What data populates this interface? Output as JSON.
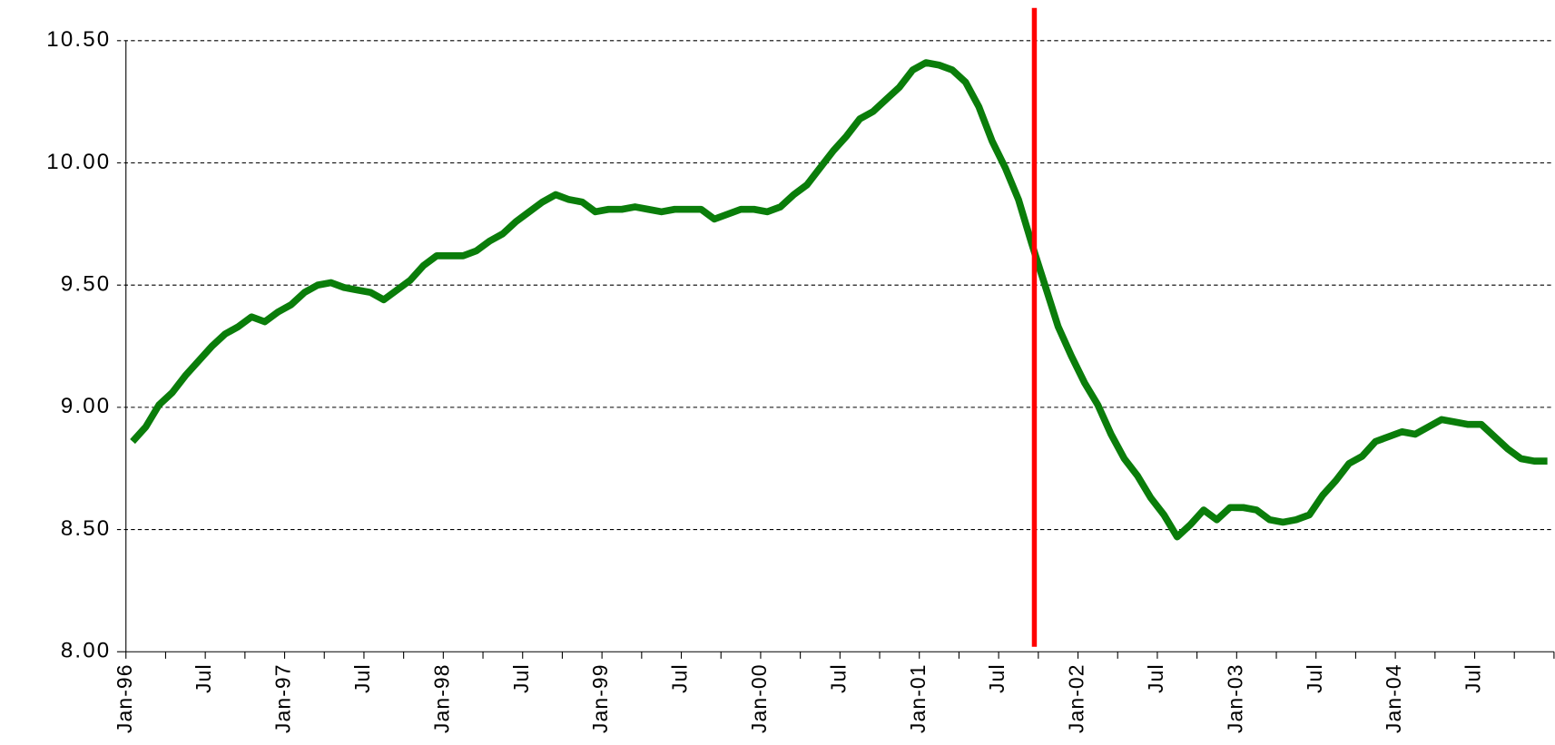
{
  "chart_data": {
    "type": "line",
    "categories": [
      "Jan-96",
      null,
      null,
      null,
      null,
      null,
      "Jul",
      null,
      null,
      null,
      null,
      null,
      "Jan-97",
      null,
      null,
      null,
      null,
      null,
      "Jul",
      null,
      null,
      null,
      null,
      null,
      "Jan-98",
      null,
      null,
      null,
      null,
      null,
      "Jul",
      null,
      null,
      null,
      null,
      null,
      "Jan-99",
      null,
      null,
      null,
      null,
      null,
      "Jul",
      null,
      null,
      null,
      null,
      null,
      "Jan-00",
      null,
      null,
      null,
      null,
      null,
      "Jul",
      null,
      null,
      null,
      null,
      null,
      "Jan-01",
      null,
      null,
      null,
      null,
      null,
      "Jul",
      null,
      null,
      null,
      null,
      null,
      "Jan-02",
      null,
      null,
      null,
      null,
      null,
      "Jul",
      null,
      null,
      null,
      null,
      null,
      "Jan-03",
      null,
      null,
      null,
      null,
      null,
      "Jul",
      null,
      null,
      null,
      null,
      null,
      "Jan-04",
      null,
      null,
      null,
      null,
      null,
      "Jul",
      null,
      null,
      null,
      null,
      null
    ],
    "series": [
      {
        "color": "#0a7d0a",
        "values": [
          8.86,
          8.92,
          9.01,
          9.06,
          9.13,
          9.19,
          9.25,
          9.3,
          9.33,
          9.37,
          9.35,
          9.39,
          9.42,
          9.47,
          9.5,
          9.51,
          9.49,
          9.48,
          9.47,
          9.44,
          9.48,
          9.52,
          9.58,
          9.62,
          9.62,
          9.62,
          9.64,
          9.68,
          9.71,
          9.76,
          9.8,
          9.84,
          9.87,
          9.85,
          9.84,
          9.8,
          9.81,
          9.81,
          9.82,
          9.81,
          9.8,
          9.81,
          9.81,
          9.81,
          9.77,
          9.79,
          9.81,
          9.81,
          9.8,
          9.82,
          9.87,
          9.91,
          9.98,
          10.05,
          10.11,
          10.18,
          10.21,
          10.26,
          10.31,
          10.38,
          10.41,
          10.4,
          10.38,
          10.33,
          10.23,
          10.09,
          9.98,
          9.85,
          9.67,
          9.5,
          9.33,
          9.21,
          9.1,
          9.01,
          8.89,
          8.79,
          8.72,
          8.63,
          8.56,
          8.47,
          8.52,
          8.58,
          8.54,
          8.59,
          8.59,
          8.58,
          8.54,
          8.53,
          8.54,
          8.56,
          8.64,
          8.7,
          8.77,
          8.8,
          8.86,
          8.88,
          8.9,
          8.89,
          8.92,
          8.95,
          8.94,
          8.93,
          8.93,
          8.88,
          8.83,
          8.79,
          8.78,
          8.78
        ]
      }
    ],
    "ylim": [
      8,
      10.5
    ],
    "yticks": [
      {
        "value": 8,
        "label": "8.00"
      },
      {
        "value": 8.5,
        "label": "8.50"
      },
      {
        "value": 9,
        "label": "9.00"
      },
      {
        "value": 9.5,
        "label": "9.50"
      },
      {
        "value": 10,
        "label": "10.00"
      },
      {
        "value": 10.5,
        "label": "10.50"
      }
    ],
    "grid": true,
    "marker_line": {
      "x": 68.2,
      "color": "#ff0000"
    }
  }
}
